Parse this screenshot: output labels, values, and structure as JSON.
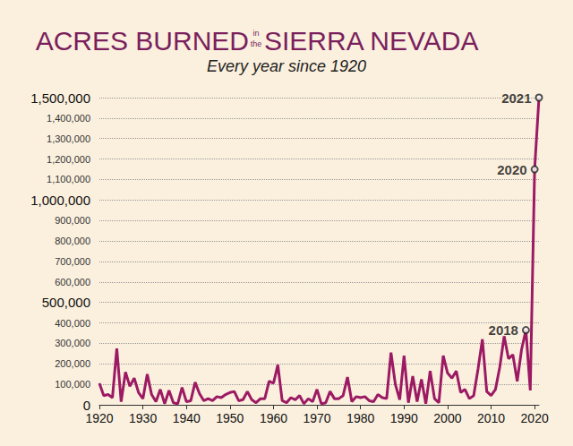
{
  "chart_data": {
    "type": "line",
    "title": [
      "ACRES BURNED",
      "in",
      "the",
      "SIERRA NEVADA"
    ],
    "subtitle": "Every year since 1920",
    "color": "#9c1a63",
    "grid": true,
    "x": [
      1920,
      1921,
      1922,
      1923,
      1924,
      1925,
      1926,
      1927,
      1928,
      1929,
      1930,
      1931,
      1932,
      1933,
      1934,
      1935,
      1936,
      1937,
      1938,
      1939,
      1940,
      1941,
      1942,
      1943,
      1944,
      1945,
      1946,
      1947,
      1948,
      1949,
      1950,
      1951,
      1952,
      1953,
      1954,
      1955,
      1956,
      1957,
      1958,
      1959,
      1960,
      1961,
      1962,
      1963,
      1964,
      1965,
      1966,
      1967,
      1968,
      1969,
      1970,
      1971,
      1972,
      1973,
      1974,
      1975,
      1976,
      1977,
      1978,
      1979,
      1980,
      1981,
      1982,
      1983,
      1984,
      1985,
      1986,
      1987,
      1988,
      1989,
      1990,
      1991,
      1992,
      1993,
      1994,
      1995,
      1996,
      1997,
      1998,
      1999,
      2000,
      2001,
      2002,
      2003,
      2004,
      2005,
      2006,
      2007,
      2008,
      2009,
      2010,
      2011,
      2012,
      2013,
      2014,
      2015,
      2016,
      2017,
      2018,
      2019,
      2020,
      2021
    ],
    "values": [
      105000,
      45000,
      50000,
      35000,
      275000,
      15000,
      160000,
      90000,
      130000,
      60000,
      30000,
      150000,
      50000,
      15000,
      75000,
      5000,
      70000,
      10000,
      5000,
      85000,
      15000,
      20000,
      110000,
      55000,
      20000,
      30000,
      20000,
      40000,
      35000,
      50000,
      60000,
      65000,
      20000,
      25000,
      65000,
      25000,
      10000,
      30000,
      30000,
      115000,
      105000,
      195000,
      20000,
      10000,
      35000,
      25000,
      45000,
      5000,
      30000,
      15000,
      75000,
      5000,
      10000,
      65000,
      30000,
      30000,
      45000,
      135000,
      15000,
      40000,
      35000,
      40000,
      20000,
      15000,
      50000,
      35000,
      30000,
      255000,
      100000,
      25000,
      240000,
      10000,
      140000,
      15000,
      125000,
      5000,
      165000,
      30000,
      10000,
      240000,
      155000,
      130000,
      165000,
      60000,
      75000,
      30000,
      45000,
      175000,
      320000,
      65000,
      45000,
      75000,
      185000,
      335000,
      225000,
      245000,
      115000,
      270000,
      365000,
      70000,
      1150000,
      1500000
    ],
    "annotations": [
      {
        "x": 2018,
        "label": "2018"
      },
      {
        "x": 2020,
        "label": "2020"
      },
      {
        "x": 2021,
        "label": "2021"
      }
    ],
    "xlim": [
      1920,
      2021
    ],
    "xticks": [
      1920,
      1930,
      1940,
      1950,
      1960,
      1970,
      1980,
      1990,
      2000,
      2010,
      2020
    ],
    "ylim": [
      0,
      1500000
    ],
    "yticks": [
      0,
      {
        "value": 100000,
        "label": "100,000"
      },
      {
        "value": 200000,
        "label": "200,000"
      },
      {
        "value": 300000,
        "label": "300,000"
      },
      {
        "value": 400000,
        "label": "400,000"
      },
      {
        "value": 500000,
        "label": "500,000"
      },
      {
        "value": 600000,
        "label": "600,000"
      },
      {
        "value": 700000,
        "label": "700,000"
      },
      {
        "value": 800000,
        "label": "800,000"
      },
      {
        "value": 900000,
        "label": "900,000"
      },
      {
        "value": 1000000,
        "label": "1,000,000"
      },
      {
        "value": 1100000,
        "label": "1,100,000"
      },
      {
        "value": 1200000,
        "label": "1,200,000"
      },
      {
        "value": 1300000,
        "label": "1,300,000"
      },
      {
        "value": 1400000,
        "label": "1,400,000"
      },
      {
        "value": 1500000,
        "label": "1,500,000"
      }
    ]
  }
}
